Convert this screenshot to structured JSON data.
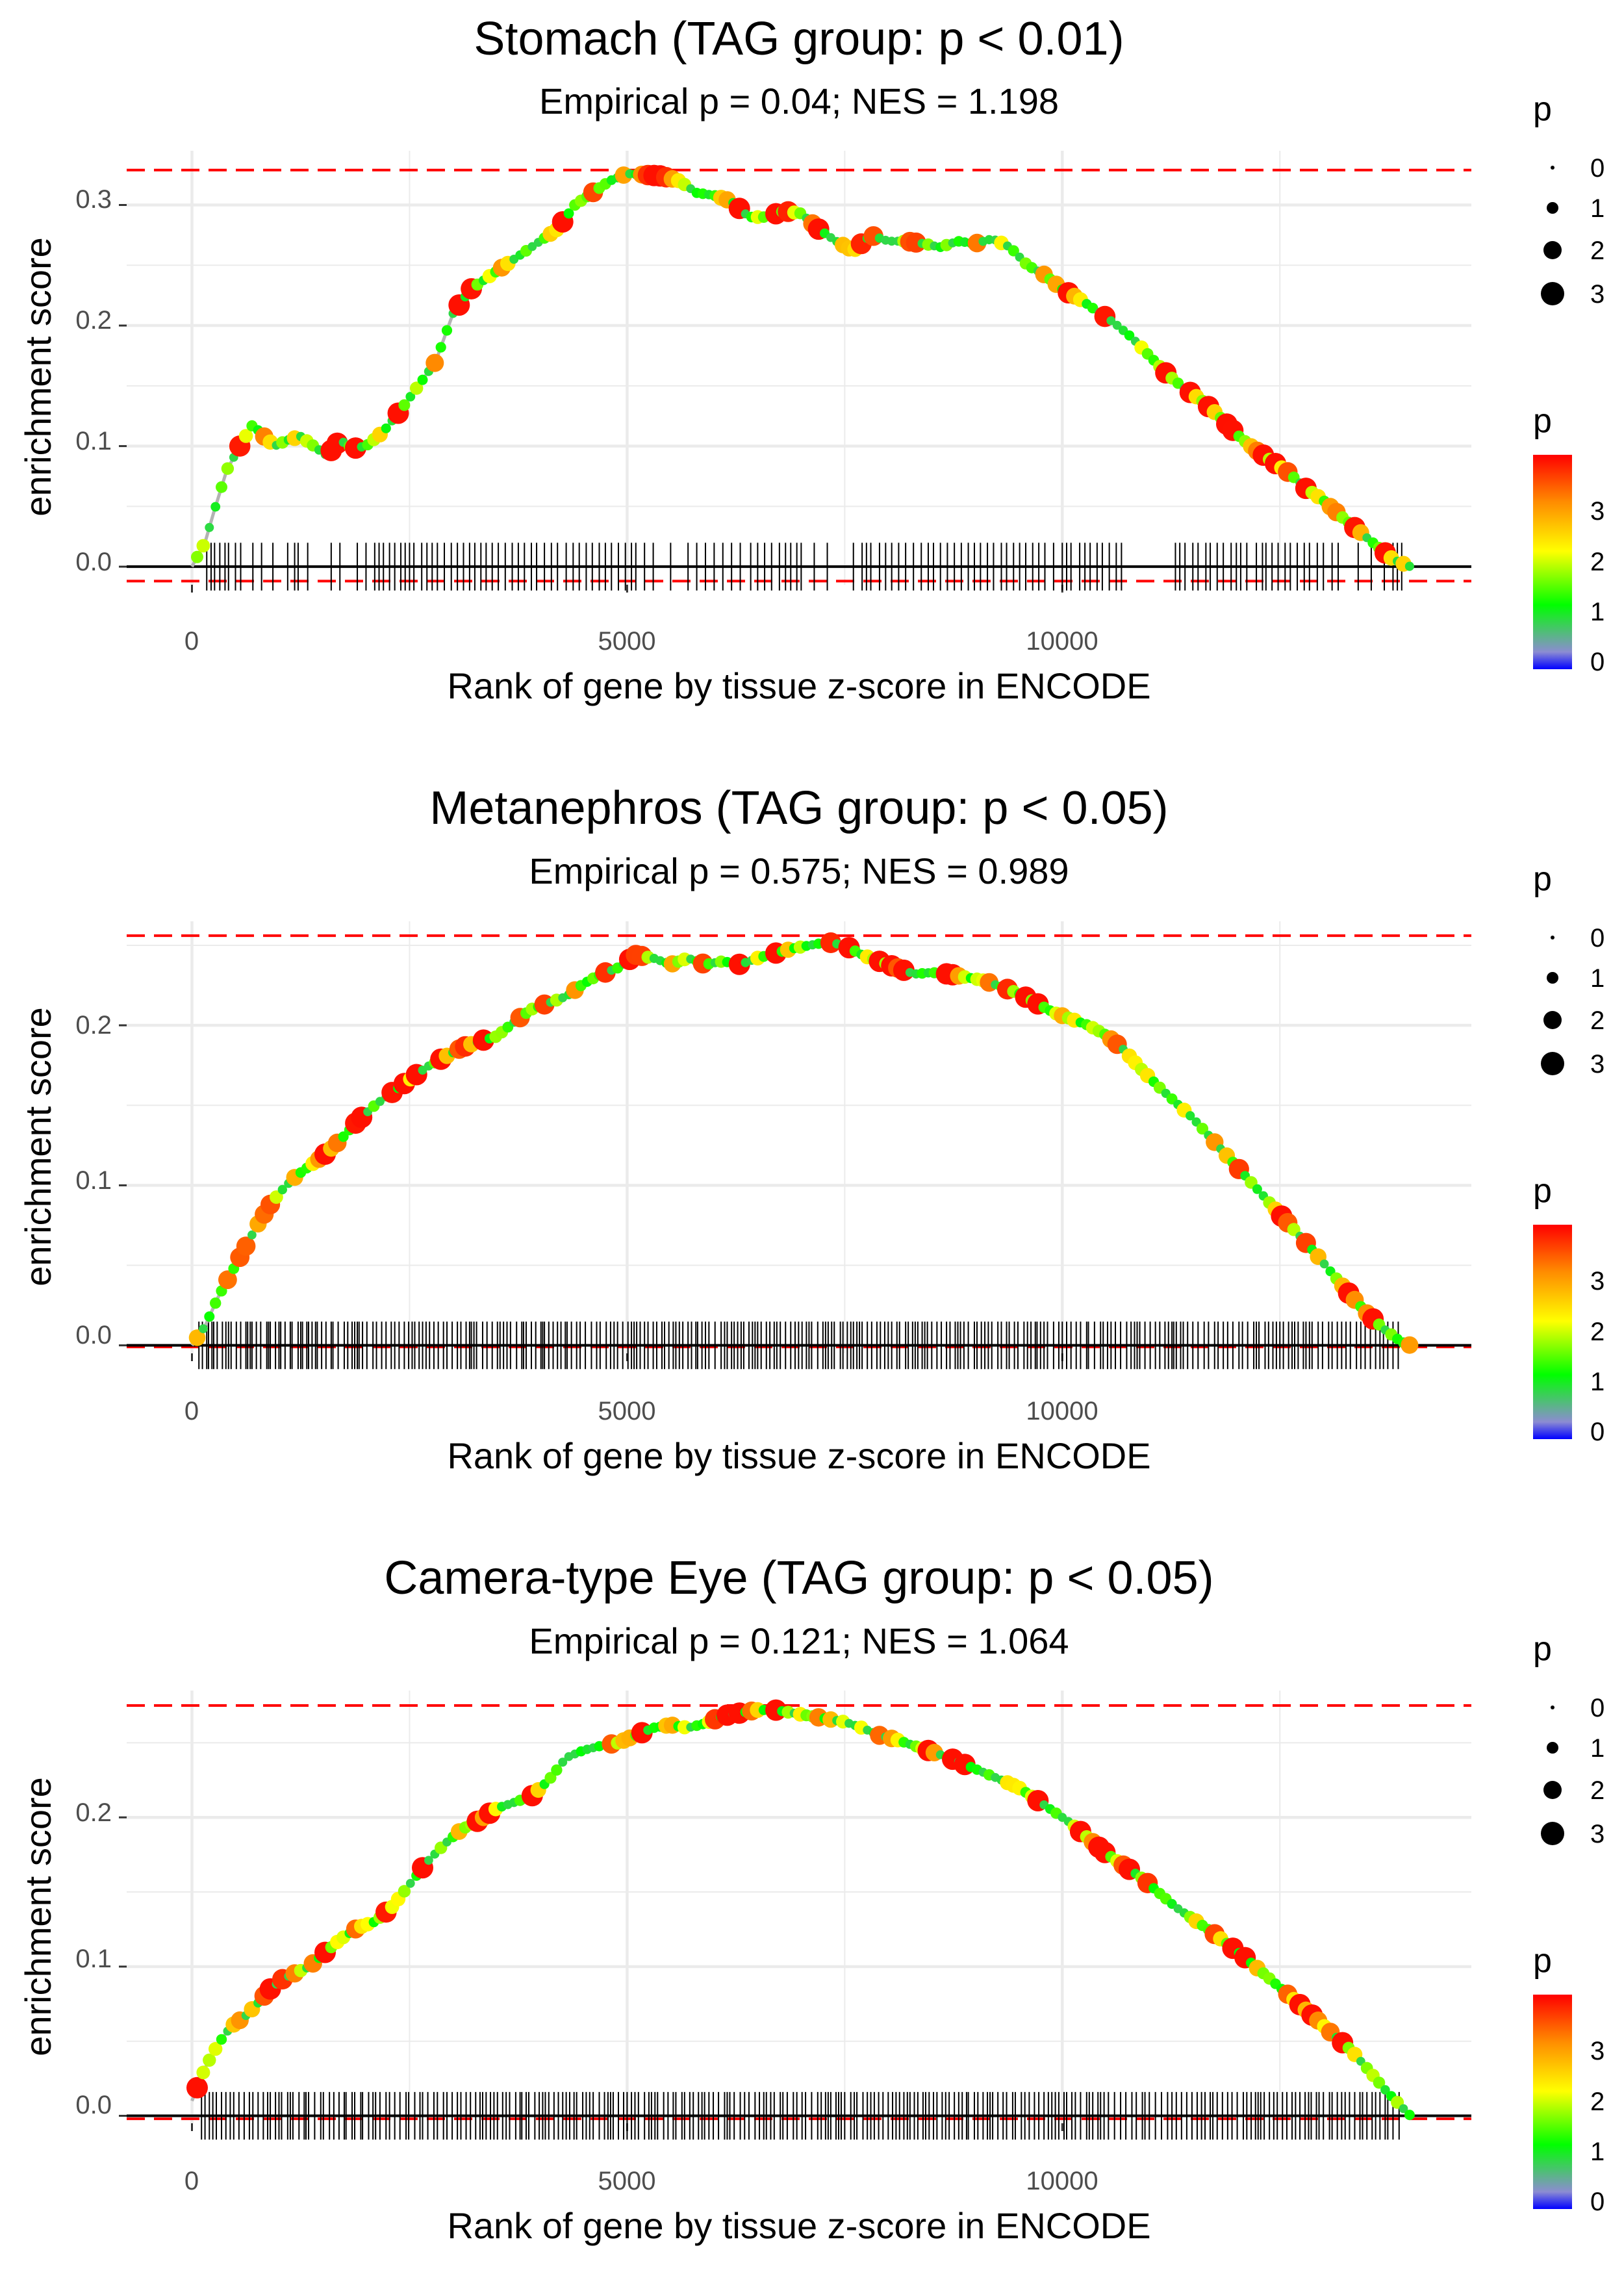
{
  "chart_data": [
    {
      "type": "line",
      "title": "Stomach (TAG group: p < 0.01)",
      "subtitle": "Empirical p = 0.04; NES = 1.198",
      "xlabel": "Rank of gene by tissue z-score in ENCODE",
      "ylabel": "enrichment score",
      "xlim": [
        -750,
        14700
      ],
      "ylim": [
        -0.015,
        0.345
      ],
      "xticks": [
        0,
        5000,
        10000
      ],
      "xtick_labels": [
        "0",
        "5000",
        "10000"
      ],
      "yticks": [
        0.0,
        0.1,
        0.2,
        0.3
      ],
      "ytick_labels": [
        "0.0",
        "0.1",
        "0.2",
        "0.3"
      ],
      "max_es_line": 0.329,
      "min_es_line": -0.012,
      "x": [
        0,
        150,
        250,
        400,
        550,
        700,
        800,
        950,
        1100,
        1250,
        1400,
        1550,
        1700,
        1850,
        2000,
        2200,
        2400,
        2600,
        2800,
        3000,
        3200,
        3400,
        3600,
        3800,
        4000,
        4200,
        4400,
        4600,
        4800,
        5000,
        5200,
        5400,
        5600,
        5800,
        6000,
        6200,
        6400,
        6600,
        6800,
        7000,
        7200,
        7400,
        7600,
        7800,
        8000,
        8200,
        8400,
        8600,
        8800,
        9000,
        9200,
        9400,
        9600,
        9800,
        10000,
        10200,
        10400,
        10600,
        10800,
        11000,
        11200,
        11400,
        11600,
        11800,
        12000,
        12200,
        12400,
        12600,
        12800,
        13000,
        13200,
        13400,
        13600,
        13800,
        14000
      ],
      "y": [
        0.0,
        0.02,
        0.045,
        0.08,
        0.1,
        0.118,
        0.11,
        0.1,
        0.105,
        0.108,
        0.1,
        0.092,
        0.105,
        0.098,
        0.1,
        0.112,
        0.13,
        0.15,
        0.17,
        0.21,
        0.23,
        0.24,
        0.25,
        0.26,
        0.27,
        0.28,
        0.3,
        0.31,
        0.32,
        0.326,
        0.325,
        0.324,
        0.32,
        0.31,
        0.308,
        0.303,
        0.29,
        0.29,
        0.295,
        0.293,
        0.28,
        0.27,
        0.262,
        0.275,
        0.27,
        0.27,
        0.268,
        0.265,
        0.27,
        0.268,
        0.272,
        0.265,
        0.25,
        0.242,
        0.23,
        0.222,
        0.212,
        0.202,
        0.19,
        0.175,
        0.16,
        0.148,
        0.138,
        0.125,
        0.11,
        0.098,
        0.088,
        0.078,
        0.065,
        0.055,
        0.042,
        0.03,
        0.018,
        0.006,
        0.0
      ],
      "hit_positions": [
        170,
        220,
        260,
        320,
        380,
        420,
        500,
        560,
        700,
        800,
        930,
        1100,
        1180,
        1220,
        1330,
        1600,
        1700,
        1900,
        2000,
        2100,
        2150,
        2200,
        2270,
        2330,
        2400,
        2450,
        2500,
        2550,
        2640,
        2700,
        2760,
        2820,
        2900,
        2980,
        3050,
        3120,
        3190,
        3250,
        3320,
        3380,
        3450,
        3520,
        3600,
        3680,
        3750,
        3820,
        3900,
        3960,
        4050,
        4130,
        4200,
        4300,
        4380,
        4450,
        4530,
        4600,
        4680,
        4750,
        4820,
        4900,
        4980,
        5050,
        5100,
        5200,
        5300,
        5500,
        5700,
        5800,
        5900,
        6000,
        6100,
        6200,
        6300,
        6420,
        6500,
        6580,
        6660,
        6750,
        6820,
        6880,
        6950,
        7000,
        7150,
        7300,
        7600,
        7700,
        7750,
        7800,
        7900,
        7970,
        8040,
        8120,
        8200,
        8290,
        8380,
        8460,
        8520,
        8600,
        8680,
        8760,
        8840,
        8920,
        8990,
        9060,
        9140,
        9210,
        9300,
        9360,
        9440,
        9510,
        9580,
        9660,
        9730,
        9800,
        9900,
        10000,
        10050,
        10100,
        10200,
        10260,
        10320,
        10400,
        10460,
        10540,
        10620,
        10680,
        11300,
        11350,
        11410,
        11500,
        11560,
        11650,
        11700,
        11780,
        11850,
        11940,
        12000,
        12050,
        12120,
        12230,
        12300,
        12340,
        12410,
        12480,
        12560,
        12620,
        12700,
        12780,
        12840,
        12930,
        13000,
        13100,
        13170,
        13400,
        13550,
        13700,
        13800,
        13850,
        13900
      ]
    },
    {
      "type": "line",
      "title": "Metanephros (TAG group: p < 0.05)",
      "subtitle": "Empirical p = 0.575; NES = 0.989",
      "xlabel": "Rank of gene by tissue z-score in ENCODE",
      "ylabel": "enrichment score",
      "xlim": [
        -750,
        14700
      ],
      "ylim": [
        -0.005,
        0.265
      ],
      "xticks": [
        0,
        5000,
        10000
      ],
      "xtick_labels": [
        "0",
        "5000",
        "10000"
      ],
      "yticks": [
        0.0,
        0.1,
        0.2
      ],
      "ytick_labels": [
        "0.0",
        "0.1",
        "0.2"
      ],
      "max_es_line": 0.256,
      "min_es_line": -0.001,
      "x": [
        0,
        150,
        300,
        450,
        600,
        750,
        900,
        1050,
        1200,
        1350,
        1500,
        1700,
        1900,
        2100,
        2300,
        2500,
        2700,
        2900,
        3100,
        3300,
        3500,
        3700,
        3900,
        4100,
        4300,
        4500,
        4700,
        4900,
        5100,
        5300,
        5500,
        5700,
        5900,
        6100,
        6300,
        6500,
        6700,
        6900,
        7100,
        7300,
        7500,
        7700,
        7900,
        8100,
        8300,
        8500,
        8700,
        8900,
        9100,
        9300,
        9500,
        9700,
        9900,
        10100,
        10300,
        10500,
        10700,
        10900,
        11100,
        11300,
        11500,
        11700,
        11900,
        12100,
        12300,
        12500,
        12700,
        12900,
        13100,
        13300,
        13500,
        13700,
        13900,
        14000
      ],
      "y": [
        0.0,
        0.012,
        0.03,
        0.045,
        0.06,
        0.075,
        0.088,
        0.098,
        0.106,
        0.112,
        0.118,
        0.128,
        0.14,
        0.15,
        0.158,
        0.166,
        0.174,
        0.18,
        0.186,
        0.19,
        0.193,
        0.202,
        0.21,
        0.214,
        0.218,
        0.226,
        0.232,
        0.236,
        0.244,
        0.242,
        0.238,
        0.242,
        0.238,
        0.24,
        0.238,
        0.242,
        0.245,
        0.248,
        0.25,
        0.252,
        0.25,
        0.244,
        0.24,
        0.236,
        0.232,
        0.233,
        0.232,
        0.23,
        0.228,
        0.224,
        0.22,
        0.214,
        0.208,
        0.204,
        0.2,
        0.194,
        0.185,
        0.173,
        0.162,
        0.152,
        0.142,
        0.13,
        0.118,
        0.106,
        0.094,
        0.082,
        0.07,
        0.058,
        0.045,
        0.032,
        0.02,
        0.01,
        0.002,
        0.0
      ],
      "hit_positions": [
        80,
        120,
        170,
        190,
        230,
        250,
        290,
        350,
        390,
        420,
        450,
        510,
        560,
        620,
        640,
        670,
        690,
        740,
        790,
        860,
        880,
        900,
        960,
        1000,
        1020,
        1070,
        1130,
        1150,
        1220,
        1250,
        1270,
        1320,
        1340,
        1380,
        1420,
        1440,
        1490,
        1540,
        1600,
        1620,
        1680,
        1750,
        1790,
        1840,
        1870,
        1900,
        1920,
        1960,
        2010,
        2080,
        2120,
        2180,
        2230,
        2290,
        2330,
        2380,
        2440,
        2490,
        2530,
        2560,
        2610,
        2650,
        2690,
        2730,
        2780,
        2830,
        2890,
        2930,
        2990,
        3050,
        3090,
        3150,
        3190,
        3210,
        3240,
        3270,
        3340,
        3390,
        3450,
        3510,
        3540,
        3580,
        3620,
        3660,
        3730,
        3790,
        3810,
        3840,
        3900,
        3950,
        4010,
        4030,
        4050,
        4100,
        4150,
        4200,
        4240,
        4290,
        4310,
        4360,
        4420,
        4460,
        4520,
        4590,
        4650,
        4690,
        4760,
        4810,
        4850,
        4890,
        4950,
        5010,
        5050,
        5080,
        5110,
        5150,
        5200,
        5240,
        5300,
        5340,
        5400,
        5430,
        5480,
        5530,
        5560,
        5600,
        5640,
        5700,
        5740,
        5790,
        5810,
        5860,
        5900,
        5940,
        6010,
        6080,
        6120,
        6150,
        6200,
        6230,
        6270,
        6310,
        6340,
        6400,
        6440,
        6470,
        6500,
        6540,
        6600,
        6640,
        6690,
        6720,
        6760,
        6820,
        6880,
        6930,
        6970,
        7010,
        7060,
        7090,
        7120,
        7190,
        7250,
        7280,
        7310,
        7350,
        7380,
        7450,
        7480,
        7530,
        7570,
        7600,
        7640,
        7670,
        7700,
        7760,
        7810,
        7870,
        7910,
        7960,
        8000,
        8040,
        8100,
        8130,
        8200,
        8230,
        8280,
        8310,
        8340,
        8390,
        8420,
        8450,
        8500,
        8560,
        8610,
        8670,
        8710,
        8770,
        8800,
        8830,
        8870,
        8920,
        8990,
        9020,
        9070,
        9110,
        9150,
        9190,
        9260,
        9300,
        9360,
        9390,
        9450,
        9490,
        9560,
        9600,
        9640,
        9690,
        9710,
        9750,
        9790,
        9830,
        9900,
        9960,
        10000,
        10050,
        10100,
        10160,
        10210,
        10280,
        10300,
        10370,
        10440,
        10470,
        10520,
        10560,
        10610,
        10670,
        10740,
        10790,
        10830,
        10860,
        10890,
        10950,
        11010,
        11070,
        11120,
        11180,
        11220,
        11260,
        11280,
        11310,
        11360,
        11390,
        11440,
        11500,
        11560,
        11630,
        11680,
        11750,
        11790,
        11850,
        11900,
        11960,
        12030,
        12070,
        12130,
        12200,
        12230,
        12260,
        12330,
        12370,
        12420,
        12460,
        12500,
        12540,
        12600,
        12640,
        12670,
        12710,
        12770,
        12800,
        12840,
        12870,
        12940,
        12990,
        13060,
        13100,
        13160,
        13210,
        13260,
        13310,
        13380,
        13430,
        13480,
        13540,
        13600,
        13650,
        13690,
        13740,
        13800,
        13860
      ]
    },
    {
      "type": "line",
      "title": "Camera-type Eye (TAG group: p < 0.05)",
      "subtitle": "Empirical p = 0.121; NES = 1.064",
      "xlabel": "Rank of gene by tissue z-score in ENCODE",
      "ylabel": "enrichment score",
      "xlim": [
        -750,
        14700
      ],
      "ylim": [
        -0.005,
        0.285
      ],
      "xticks": [
        0,
        5000,
        10000
      ],
      "xtick_labels": [
        "0",
        "5000",
        "10000"
      ],
      "yticks": [
        0.0,
        0.1,
        0.2
      ],
      "ytick_labels": [
        "0.0",
        "0.1",
        "0.2"
      ],
      "max_es_line": 0.275,
      "min_es_line": -0.002,
      "x": [
        0,
        150,
        300,
        450,
        600,
        750,
        900,
        1050,
        1200,
        1350,
        1500,
        1700,
        1900,
        2100,
        2300,
        2500,
        2700,
        2900,
        3100,
        3300,
        3500,
        3700,
        3900,
        4100,
        4300,
        4500,
        4700,
        4900,
        5100,
        5300,
        5500,
        5700,
        5900,
        6100,
        6300,
        6500,
        6700,
        6900,
        7100,
        7300,
        7500,
        7700,
        7900,
        8100,
        8300,
        8500,
        8700,
        8900,
        9100,
        9300,
        9500,
        9700,
        9900,
        10100,
        10300,
        10500,
        10700,
        10900,
        11100,
        11300,
        11500,
        11700,
        11900,
        12100,
        12300,
        12500,
        12700,
        12900,
        13100,
        13300,
        13500,
        13700,
        13900,
        14000
      ],
      "y": [
        0.01,
        0.032,
        0.048,
        0.06,
        0.066,
        0.075,
        0.085,
        0.092,
        0.096,
        0.1,
        0.108,
        0.118,
        0.126,
        0.13,
        0.14,
        0.155,
        0.17,
        0.182,
        0.192,
        0.198,
        0.206,
        0.21,
        0.214,
        0.225,
        0.24,
        0.245,
        0.248,
        0.25,
        0.255,
        0.26,
        0.262,
        0.26,
        0.263,
        0.268,
        0.27,
        0.272,
        0.272,
        0.27,
        0.268,
        0.266,
        0.264,
        0.26,
        0.255,
        0.252,
        0.248,
        0.244,
        0.24,
        0.235,
        0.23,
        0.225,
        0.22,
        0.212,
        0.204,
        0.196,
        0.186,
        0.176,
        0.168,
        0.16,
        0.15,
        0.14,
        0.132,
        0.124,
        0.115,
        0.106,
        0.096,
        0.086,
        0.076,
        0.066,
        0.055,
        0.045,
        0.032,
        0.018,
        0.006,
        0.0
      ],
      "hit_positions": [
        110,
        150,
        200,
        240,
        280,
        340,
        390,
        440,
        480,
        540,
        600,
        660,
        700,
        760,
        820,
        870,
        900,
        960,
        1000,
        1030,
        1100,
        1130,
        1160,
        1230,
        1290,
        1310,
        1340,
        1410,
        1480,
        1510,
        1580,
        1630,
        1690,
        1750,
        1770,
        1840,
        1870,
        1940,
        1960,
        2030,
        2080,
        2110,
        2160,
        2230,
        2270,
        2330,
        2390,
        2460,
        2490,
        2560,
        2620,
        2650,
        2710,
        2780,
        2820,
        2890,
        2930,
        2990,
        3050,
        3090,
        3150,
        3200,
        3260,
        3310,
        3340,
        3380,
        3430,
        3470,
        3510,
        3570,
        3610,
        3650,
        3720,
        3770,
        3790,
        3840,
        3870,
        3940,
        3990,
        4030,
        4060,
        4100,
        4160,
        4210,
        4260,
        4300,
        4340,
        4390,
        4420,
        4490,
        4530,
        4570,
        4610,
        4680,
        4740,
        4780,
        4810,
        4840,
        4900,
        4960,
        5000,
        5050,
        5090,
        5130,
        5200,
        5250,
        5280,
        5320,
        5350,
        5420,
        5470,
        5530,
        5560,
        5630,
        5660,
        5720,
        5760,
        5820,
        5860,
        5890,
        5940,
        5990,
        6050,
        6120,
        6150,
        6180,
        6230,
        6300,
        6350,
        6400,
        6470,
        6520,
        6570,
        6600,
        6650,
        6690,
        6760,
        6790,
        6840,
        6910,
        6950,
        7010,
        7050,
        7120,
        7190,
        7230,
        7280,
        7310,
        7340,
        7400,
        7430,
        7460,
        7500,
        7570,
        7610,
        7640,
        7710,
        7760,
        7800,
        7840,
        7890,
        7940,
        8000,
        8050,
        8090,
        8130,
        8180,
        8220,
        8250,
        8300,
        8340,
        8400,
        8430,
        8470,
        8520,
        8560,
        8620,
        8660,
        8700,
        8760,
        8810,
        8850,
        8900,
        8920,
        8990,
        9030,
        9090,
        9140,
        9170,
        9200,
        9260,
        9320,
        9360,
        9430,
        9460,
        9530,
        9570,
        9620,
        9680,
        9730,
        9790,
        9840,
        9880,
        9920,
        9960,
        10020,
        10050,
        10110,
        10150,
        10210,
        10280,
        10310,
        10350,
        10410,
        10440,
        10480,
        10530,
        10600,
        10670,
        10730,
        10800,
        10850,
        10920,
        10950,
        11000,
        11070,
        11140,
        11210,
        11260,
        11310,
        11370,
        11430,
        11490,
        11550,
        11600,
        11640,
        11700,
        11730,
        11780,
        11840,
        11900,
        11950,
        12010,
        12080,
        12120,
        12170,
        12220,
        12250,
        12280,
        12320,
        12380,
        12430,
        12470,
        12530,
        12580,
        12640,
        12680,
        12730,
        12790,
        12830,
        12860,
        12920,
        12950,
        13000,
        13070,
        13100,
        13160,
        13210,
        13250,
        13300,
        13360,
        13420,
        13450,
        13500,
        13560,
        13600,
        13650,
        13710,
        13740,
        13800,
        13870
      ]
    }
  ],
  "legend": {
    "size_title": "p",
    "size_labels": [
      "0",
      "1",
      "2",
      "3"
    ],
    "color_title": "p",
    "color_labels": [
      "3",
      "2",
      "1",
      "0"
    ],
    "colors": [
      "#0000ff",
      "#8c8cd2",
      "#00ff00",
      "#ffff00",
      "#ff8c00",
      "#ff0000"
    ]
  },
  "colors": {
    "gridline": "#ebebeb",
    "es_line": "#b3b3b3",
    "threshold": "#ff0000",
    "baseline": "#000000",
    "hit_tick": "#000000"
  }
}
